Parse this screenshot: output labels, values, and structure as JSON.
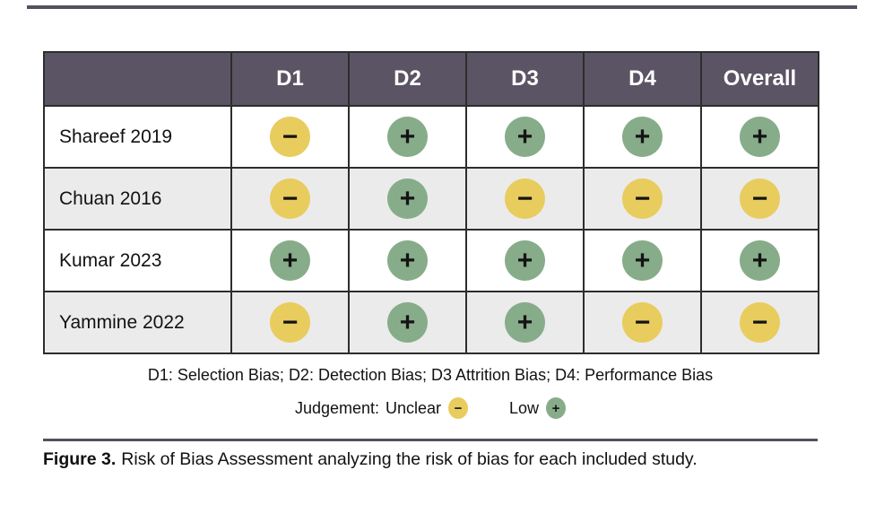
{
  "chart_data": {
    "type": "table",
    "title": "Risk of Bias Assessment",
    "columns": [
      "D1",
      "D2",
      "D3",
      "D4",
      "Overall"
    ],
    "rows": [
      "Shareef 2019",
      "Chuan 2016",
      "Kumar 2023",
      "Yammine 2022"
    ],
    "values": [
      [
        "unclear",
        "low",
        "low",
        "low",
        "low"
      ],
      [
        "unclear",
        "low",
        "unclear",
        "unclear",
        "unclear"
      ],
      [
        "low",
        "low",
        "low",
        "low",
        "low"
      ],
      [
        "unclear",
        "low",
        "low",
        "unclear",
        "unclear"
      ]
    ],
    "legend": {
      "unclear": "−",
      "low": "+"
    },
    "legend_position": "bottom"
  },
  "table": {
    "columns": [
      "D1",
      "D2",
      "D3",
      "D4",
      "Overall"
    ],
    "rows": [
      {
        "study": "Shareef 2019",
        "judgements": [
          "unclear",
          "low",
          "low",
          "low",
          "low"
        ]
      },
      {
        "study": "Chuan 2016",
        "judgements": [
          "unclear",
          "low",
          "unclear",
          "unclear",
          "unclear"
        ]
      },
      {
        "study": "Kumar 2023",
        "judgements": [
          "low",
          "low",
          "low",
          "low",
          "low"
        ]
      },
      {
        "study": "Yammine 2022",
        "judgements": [
          "unclear",
          "low",
          "low",
          "unclear",
          "unclear"
        ]
      }
    ]
  },
  "symbols": {
    "unclear": "−",
    "low": "+"
  },
  "colors": {
    "unclear": "#e9cc5e",
    "low": "#87ac89",
    "header_bg": "#5a5464",
    "alt_row": "#ebebeb",
    "border": "#2d2d2d",
    "rule": "#55505e"
  },
  "footnote": "D1: Selection Bias; D2: Detection Bias; D3 Attrition Bias; D4: Performance Bias",
  "legend": {
    "prefix": "Judgement:",
    "items": [
      {
        "label": "Unclear",
        "judgement": "unclear"
      },
      {
        "label": "Low",
        "judgement": "low"
      }
    ]
  },
  "caption": {
    "label": "Figure 3.",
    "text": "Risk of Bias Assessment analyzing the risk of bias for each included study."
  }
}
